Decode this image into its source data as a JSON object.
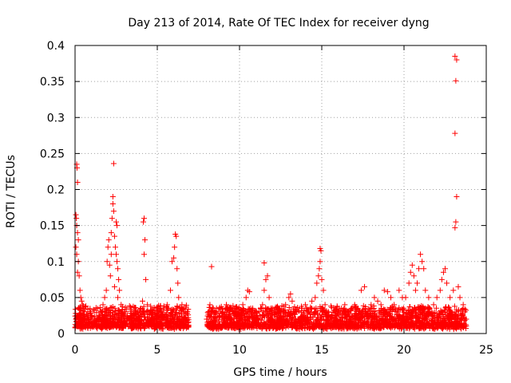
{
  "chart_data": {
    "type": "scatter",
    "title": "Day 213 of 2014, Rate Of TEC Index for receiver dyng",
    "xlabel": "GPS time / hours",
    "ylabel": "ROTI / TECUs",
    "xlim": [
      0,
      25
    ],
    "ylim": [
      0,
      0.4
    ],
    "xticks": [
      0,
      5,
      10,
      15,
      20,
      25
    ],
    "yticks": [
      0,
      0.05,
      0.1,
      0.15,
      0.2,
      0.25,
      0.3,
      0.35,
      0.4
    ],
    "xtick_labels": [
      "0",
      "5",
      "10",
      "15",
      "20",
      "25"
    ],
    "ytick_labels": [
      "0",
      "0.05",
      "0.1",
      "0.15",
      "0.2",
      "0.25",
      "0.3",
      "0.35",
      "0.4"
    ],
    "grid": true,
    "marker": "+",
    "series": [
      {
        "name": "ROTI",
        "color": "#ff0000",
        "points": [
          [
            0.1,
            0.235
          ],
          [
            0.12,
            0.23
          ],
          [
            0.15,
            0.21
          ],
          [
            0.05,
            0.165
          ],
          [
            0.08,
            0.16
          ],
          [
            0.1,
            0.15
          ],
          [
            0.15,
            0.14
          ],
          [
            0.2,
            0.13
          ],
          [
            0.05,
            0.12
          ],
          [
            0.1,
            0.11
          ],
          [
            0.2,
            0.1
          ],
          [
            0.15,
            0.085
          ],
          [
            0.25,
            0.08
          ],
          [
            0.3,
            0.06
          ],
          [
            0.35,
            0.05
          ],
          [
            0.4,
            0.045
          ],
          [
            0.45,
            0.04
          ],
          [
            0.2,
            0.035
          ],
          [
            0.5,
            0.03
          ],
          [
            0.05,
            0.02
          ],
          [
            0.2,
            0.015
          ],
          [
            0.4,
            0.01
          ],
          [
            0.6,
            0.02
          ],
          [
            0.8,
            0.015
          ],
          [
            1.0,
            0.025
          ],
          [
            1.2,
            0.012
          ],
          [
            1.4,
            0.02
          ],
          [
            1.6,
            0.03
          ],
          [
            1.7,
            0.04
          ],
          [
            1.8,
            0.05
          ],
          [
            1.9,
            0.06
          ],
          [
            1.95,
            0.1
          ],
          [
            2.0,
            0.12
          ],
          [
            2.05,
            0.13
          ],
          [
            2.1,
            0.095
          ],
          [
            2.15,
            0.08
          ],
          [
            2.2,
            0.11
          ],
          [
            2.25,
            0.16
          ],
          [
            2.3,
            0.18
          ],
          [
            2.35,
            0.17
          ],
          [
            2.2,
            0.14
          ],
          [
            2.4,
            0.135
          ],
          [
            2.45,
            0.12
          ],
          [
            2.5,
            0.11
          ],
          [
            2.55,
            0.1
          ],
          [
            2.6,
            0.09
          ],
          [
            2.65,
            0.075
          ],
          [
            2.7,
            0.06
          ],
          [
            2.3,
            0.19
          ],
          [
            2.35,
            0.236
          ],
          [
            2.5,
            0.155
          ],
          [
            2.55,
            0.15
          ],
          [
            2.4,
            0.065
          ],
          [
            2.6,
            0.05
          ],
          [
            2.8,
            0.04
          ],
          [
            3.0,
            0.03
          ],
          [
            3.2,
            0.022
          ],
          [
            3.4,
            0.025
          ],
          [
            3.6,
            0.018
          ],
          [
            3.8,
            0.03
          ],
          [
            4.0,
            0.035
          ],
          [
            4.1,
            0.045
          ],
          [
            4.15,
            0.155
          ],
          [
            4.2,
            0.16
          ],
          [
            4.25,
            0.13
          ],
          [
            4.2,
            0.11
          ],
          [
            4.3,
            0.075
          ],
          [
            4.4,
            0.04
          ],
          [
            4.6,
            0.03
          ],
          [
            4.8,
            0.02
          ],
          [
            5.0,
            0.025
          ],
          [
            5.2,
            0.03
          ],
          [
            5.4,
            0.038
          ],
          [
            5.6,
            0.04
          ],
          [
            5.8,
            0.06
          ],
          [
            5.9,
            0.1
          ],
          [
            6.0,
            0.105
          ],
          [
            6.05,
            0.12
          ],
          [
            6.1,
            0.138
          ],
          [
            6.15,
            0.135
          ],
          [
            6.2,
            0.09
          ],
          [
            6.25,
            0.07
          ],
          [
            6.3,
            0.05
          ],
          [
            6.5,
            0.04
          ],
          [
            6.7,
            0.03
          ],
          [
            6.8,
            0.02
          ],
          [
            6.9,
            0.01
          ],
          [
            3.0,
            0.015
          ],
          [
            5.0,
            0.012
          ],
          [
            6.0,
            0.015
          ],
          [
            8.0,
            0.02
          ],
          [
            8.2,
            0.04
          ],
          [
            8.4,
            0.03
          ],
          [
            8.6,
            0.035
          ],
          [
            8.8,
            0.025
          ],
          [
            9.0,
            0.03
          ],
          [
            9.2,
            0.04
          ],
          [
            9.4,
            0.02
          ],
          [
            9.6,
            0.03
          ],
          [
            8.3,
            0.093
          ],
          [
            9.8,
            0.035
          ],
          [
            10.0,
            0.03
          ],
          [
            10.2,
            0.04
          ],
          [
            10.4,
            0.05
          ],
          [
            10.5,
            0.06
          ],
          [
            10.6,
            0.058
          ],
          [
            10.8,
            0.035
          ],
          [
            11.0,
            0.02
          ],
          [
            11.2,
            0.03
          ],
          [
            11.4,
            0.04
          ],
          [
            11.5,
            0.06
          ],
          [
            11.6,
            0.075
          ],
          [
            11.7,
            0.08
          ],
          [
            11.5,
            0.098
          ],
          [
            11.8,
            0.05
          ],
          [
            12.0,
            0.035
          ],
          [
            12.2,
            0.03
          ],
          [
            12.5,
            0.025
          ],
          [
            12.8,
            0.04
          ],
          [
            13.0,
            0.05
          ],
          [
            13.1,
            0.055
          ],
          [
            13.2,
            0.045
          ],
          [
            13.4,
            0.03
          ],
          [
            13.6,
            0.02
          ],
          [
            13.8,
            0.035
          ],
          [
            14.0,
            0.04
          ],
          [
            14.2,
            0.03
          ],
          [
            14.4,
            0.045
          ],
          [
            14.6,
            0.05
          ],
          [
            14.7,
            0.07
          ],
          [
            14.8,
            0.08
          ],
          [
            14.85,
            0.09
          ],
          [
            14.9,
            0.1
          ],
          [
            14.95,
            0.115
          ],
          [
            14.9,
            0.118
          ],
          [
            15.0,
            0.075
          ],
          [
            15.1,
            0.06
          ],
          [
            15.2,
            0.04
          ],
          [
            15.4,
            0.03
          ],
          [
            15.6,
            0.02
          ],
          [
            15.8,
            0.025
          ],
          [
            16.0,
            0.03
          ],
          [
            16.2,
            0.035
          ],
          [
            16.4,
            0.04
          ],
          [
            16.6,
            0.03
          ],
          [
            16.8,
            0.035
          ],
          [
            17.0,
            0.04
          ],
          [
            17.2,
            0.035
          ],
          [
            17.4,
            0.06
          ],
          [
            17.6,
            0.065
          ],
          [
            17.8,
            0.03
          ],
          [
            18.0,
            0.04
          ],
          [
            18.2,
            0.05
          ],
          [
            18.4,
            0.045
          ],
          [
            18.6,
            0.04
          ],
          [
            18.8,
            0.06
          ],
          [
            19.0,
            0.058
          ],
          [
            19.2,
            0.05
          ],
          [
            19.4,
            0.04
          ],
          [
            19.6,
            0.03
          ],
          [
            19.7,
            0.06
          ],
          [
            19.9,
            0.05
          ],
          [
            20.1,
            0.05
          ],
          [
            20.3,
            0.07
          ],
          [
            20.4,
            0.085
          ],
          [
            20.5,
            0.095
          ],
          [
            20.6,
            0.08
          ],
          [
            20.7,
            0.06
          ],
          [
            20.8,
            0.07
          ],
          [
            20.9,
            0.09
          ],
          [
            21.0,
            0.11
          ],
          [
            21.1,
            0.1
          ],
          [
            21.2,
            0.09
          ],
          [
            21.3,
            0.06
          ],
          [
            21.5,
            0.05
          ],
          [
            21.8,
            0.04
          ],
          [
            22.0,
            0.05
          ],
          [
            22.2,
            0.06
          ],
          [
            22.3,
            0.075
          ],
          [
            22.4,
            0.085
          ],
          [
            22.5,
            0.09
          ],
          [
            22.6,
            0.07
          ],
          [
            22.8,
            0.05
          ],
          [
            23.0,
            0.06
          ],
          [
            23.1,
            0.147
          ],
          [
            23.15,
            0.155
          ],
          [
            23.2,
            0.19
          ],
          [
            23.1,
            0.278
          ],
          [
            23.15,
            0.351
          ],
          [
            23.1,
            0.385
          ],
          [
            23.2,
            0.38
          ],
          [
            23.3,
            0.065
          ],
          [
            23.4,
            0.05
          ],
          [
            23.6,
            0.04
          ],
          [
            23.7,
            0.03
          ],
          [
            23.75,
            0.02
          ],
          [
            16.5,
            0.015
          ],
          [
            18.5,
            0.02
          ],
          [
            21.5,
            0.025
          ],
          [
            22.5,
            0.03
          ],
          [
            23.5,
            0.02
          ],
          [
            20.5,
            0.03
          ],
          [
            19.5,
            0.02
          ],
          [
            17.5,
            0.015
          ]
        ]
      }
    ],
    "dense_bands": [
      {
        "start": 0.0,
        "end": 6.9,
        "seed": 11
      },
      {
        "start": 8.0,
        "end": 23.8,
        "seed": 29
      }
    ]
  }
}
